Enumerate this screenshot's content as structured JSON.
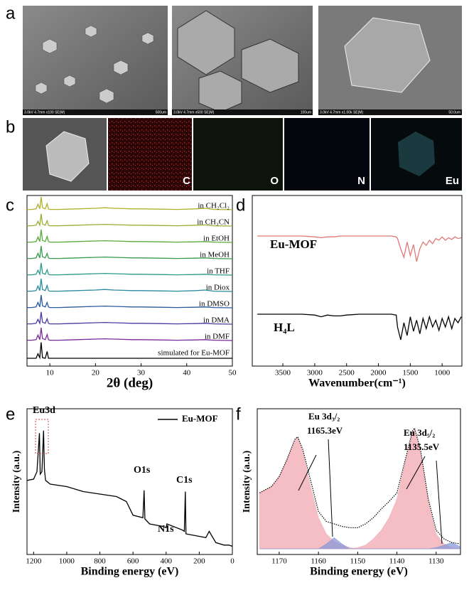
{
  "panel_labels": [
    "a",
    "b",
    "c",
    "d",
    "e",
    "f"
  ],
  "sem_images": [
    {
      "info": "3.0kV 4.7mm x100 SE(M)",
      "scale": "500um"
    },
    {
      "info": "3.0kV 4.7mm x500 SE(M)",
      "scale": "100um"
    },
    {
      "info": "3.0kV 4.7mm x1.00k SE(M)",
      "scale": "50.0um"
    }
  ],
  "eds_maps": [
    "C",
    "O",
    "N",
    "Eu"
  ],
  "chart_data": [
    {
      "type": "line",
      "xlabel": "2θ (deg)",
      "xlim": [
        5,
        50
      ],
      "xticks": [
        10,
        20,
        30,
        40,
        50
      ],
      "ylim": [
        0,
        3
      ],
      "x": [
        5,
        6,
        7,
        7.4,
        7.8,
        8.1,
        8.4,
        9,
        9.4,
        9.7,
        10,
        12,
        14,
        16,
        18,
        20,
        22,
        24,
        26,
        28,
        30,
        34,
        38,
        42,
        44,
        46,
        50
      ],
      "series": [
        {
          "name": "in CH₂Cl₂",
          "color": "#b0b02a",
          "values": [
            0.3,
            0.3,
            0.4,
            1.2,
            0.4,
            2.5,
            0.6,
            0.4,
            1.3,
            0.4,
            0.3,
            0.3,
            0.35,
            0.4,
            0.45,
            0.5,
            0.6,
            0.5,
            0.45,
            0.4,
            0.4,
            0.35,
            0.3,
            0.4,
            0.5,
            0.3,
            0.25
          ]
        },
        {
          "name": "in CH₃CN",
          "color": "#96b034",
          "values": [
            0.3,
            0.3,
            0.4,
            1.1,
            0.4,
            2.4,
            0.6,
            0.4,
            1.2,
            0.4,
            0.3,
            0.3,
            0.35,
            0.4,
            0.45,
            0.5,
            0.55,
            0.5,
            0.45,
            0.4,
            0.4,
            0.35,
            0.3,
            0.4,
            0.45,
            0.3,
            0.25
          ]
        },
        {
          "name": "in EtOH",
          "color": "#5aa83a",
          "values": [
            0.3,
            0.3,
            0.4,
            1.2,
            0.4,
            2.5,
            0.6,
            0.4,
            1.3,
            0.4,
            0.3,
            0.3,
            0.35,
            0.4,
            0.45,
            0.5,
            0.55,
            0.5,
            0.45,
            0.4,
            0.4,
            0.35,
            0.3,
            0.35,
            0.4,
            0.3,
            0.25
          ]
        },
        {
          "name": "in MeOH",
          "color": "#3a9a4a",
          "values": [
            0.3,
            0.3,
            0.4,
            1.2,
            0.4,
            2.5,
            0.6,
            0.4,
            1.2,
            0.4,
            0.3,
            0.3,
            0.35,
            0.4,
            0.45,
            0.5,
            0.55,
            0.5,
            0.45,
            0.4,
            0.4,
            0.35,
            0.3,
            0.35,
            0.4,
            0.3,
            0.25
          ]
        },
        {
          "name": "in THF",
          "color": "#2a9a8a",
          "values": [
            0.3,
            0.3,
            0.4,
            1.1,
            0.4,
            2.4,
            0.6,
            0.4,
            1.2,
            0.4,
            0.3,
            0.3,
            0.35,
            0.4,
            0.45,
            0.5,
            0.55,
            0.5,
            0.45,
            0.4,
            0.4,
            0.35,
            0.3,
            0.35,
            0.4,
            0.3,
            0.25
          ]
        },
        {
          "name": "in Diox",
          "color": "#2a8aa0",
          "values": [
            0.3,
            0.3,
            0.4,
            1.2,
            0.4,
            2.5,
            0.6,
            0.4,
            1.3,
            0.4,
            0.3,
            0.3,
            0.35,
            0.4,
            0.45,
            0.5,
            0.6,
            0.5,
            0.45,
            0.4,
            0.4,
            0.35,
            0.3,
            0.4,
            0.5,
            0.3,
            0.25
          ]
        },
        {
          "name": "in DMSO",
          "color": "#2a5aa0",
          "values": [
            0.3,
            0.3,
            0.4,
            1.2,
            0.4,
            2.5,
            0.6,
            0.4,
            1.2,
            0.4,
            0.3,
            0.3,
            0.35,
            0.4,
            0.45,
            0.5,
            0.55,
            0.5,
            0.45,
            0.4,
            0.4,
            0.35,
            0.3,
            0.35,
            0.4,
            0.3,
            0.25
          ]
        },
        {
          "name": "in DMA",
          "color": "#4a3aa0",
          "values": [
            0.3,
            0.3,
            0.4,
            1.1,
            0.4,
            2.4,
            0.6,
            0.4,
            1.2,
            0.4,
            0.3,
            0.3,
            0.35,
            0.4,
            0.45,
            0.5,
            0.55,
            0.5,
            0.45,
            0.4,
            0.4,
            0.35,
            0.3,
            0.35,
            0.4,
            0.3,
            0.25
          ]
        },
        {
          "name": "in DMF",
          "color": "#7a2a9a",
          "values": [
            0.3,
            0.3,
            0.4,
            1.2,
            0.4,
            2.5,
            0.6,
            0.4,
            1.3,
            0.4,
            0.3,
            0.3,
            0.35,
            0.4,
            0.45,
            0.5,
            0.55,
            0.5,
            0.45,
            0.4,
            0.4,
            0.35,
            0.3,
            0.35,
            0.4,
            0.3,
            0.25
          ]
        },
        {
          "name": "simulated for Eu-MOF",
          "color": "#000000",
          "values": [
            0,
            0,
            0,
            0.8,
            0.1,
            2.8,
            0.1,
            0,
            1.2,
            0,
            0,
            0,
            0,
            0,
            0,
            0,
            0,
            0,
            0,
            0,
            0,
            0,
            0,
            0,
            0,
            0,
            0
          ]
        }
      ]
    },
    {
      "type": "line",
      "xlabel": "Wavenumber(cm⁻¹)",
      "xlim": [
        3980,
        690
      ],
      "xticks": [
        3500,
        3000,
        2500,
        2000,
        1500,
        1000
      ],
      "ylim": [
        0,
        100
      ],
      "x": [
        3900,
        3500,
        3200,
        3000,
        2900,
        2800,
        2700,
        2600,
        2500,
        2300,
        2000,
        1800,
        1720,
        1700,
        1650,
        1600,
        1550,
        1500,
        1450,
        1400,
        1350,
        1300,
        1250,
        1200,
        1150,
        1100,
        1050,
        1000,
        950,
        900,
        850,
        800,
        750,
        700
      ],
      "series": [
        {
          "name": "Eu-MOF",
          "color": "#e07878",
          "values": [
            95,
            95,
            95,
            94,
            93,
            94,
            94,
            95,
            95,
            95,
            95,
            95,
            94,
            92,
            80,
            70,
            88,
            72,
            85,
            65,
            80,
            88,
            84,
            90,
            86,
            92,
            90,
            94,
            90,
            93,
            91,
            94,
            92,
            93
          ]
        },
        {
          "name": "H₄L",
          "color": "#000000",
          "values": [
            45,
            45,
            45,
            44,
            42,
            44,
            43,
            43,
            44,
            45,
            45,
            45,
            44,
            30,
            15,
            35,
            20,
            42,
            25,
            38,
            22,
            40,
            28,
            42,
            30,
            38,
            26,
            40,
            30,
            42,
            28,
            40,
            35,
            42
          ]
        }
      ]
    },
    {
      "type": "line",
      "xlabel": "Binding energy (eV)",
      "ylabel": "Intensity (a.u.)",
      "xlim": [
        1240,
        0
      ],
      "xticks": [
        1200,
        1000,
        800,
        600,
        400,
        200,
        0
      ],
      "ylim": [
        0,
        1
      ],
      "x": [
        1240,
        1200,
        1180,
        1165,
        1160,
        1150,
        1140,
        1135,
        1128,
        1100,
        1000,
        900,
        800,
        700,
        640,
        600,
        540,
        533,
        528,
        500,
        420,
        400,
        395,
        300,
        290,
        284,
        280,
        200,
        160,
        140,
        100,
        50,
        20,
        0
      ],
      "series": [
        {
          "name": "Eu-MOF",
          "color": "#000000",
          "values": [
            0.55,
            0.56,
            0.62,
            0.93,
            0.6,
            0.62,
            0.95,
            0.64,
            0.55,
            0.52,
            0.5,
            0.46,
            0.44,
            0.42,
            0.38,
            0.27,
            0.25,
            0.47,
            0.24,
            0.2,
            0.18,
            0.17,
            0.2,
            0.15,
            0.14,
            0.46,
            0.12,
            0.1,
            0.09,
            0.14,
            0.05,
            0.03,
            0.03,
            0.02
          ]
        }
      ],
      "annotations": [
        "Eu3d",
        "O1s",
        "N1s",
        "C1s"
      ]
    },
    {
      "type": "line",
      "xlabel": "Binding energy (eV)",
      "ylabel": "Intensity (a.u.)",
      "xlim": [
        1175.6,
        1123.8
      ],
      "xticks": [
        1170,
        1160,
        1150,
        1140,
        1130
      ],
      "ylim": [
        0,
        1
      ],
      "x": [
        1175,
        1172,
        1170,
        1168,
        1166,
        1165.3,
        1164,
        1162,
        1160,
        1158,
        1156,
        1154,
        1152,
        1150,
        1148,
        1146,
        1144,
        1142,
        1140,
        1138,
        1136,
        1135.5,
        1134,
        1132,
        1130,
        1128,
        1126,
        1124
      ],
      "series": [
        {
          "color": "#f0a8b0",
          "style": "area",
          "values": [
            0.45,
            0.5,
            0.58,
            0.72,
            0.87,
            0.9,
            0.78,
            0.5,
            0.25,
            0.12,
            0.06,
            0.03,
            0.01,
            0,
            0,
            0,
            0,
            0,
            0,
            0,
            0,
            0,
            0,
            0,
            0,
            0,
            0,
            0
          ]
        },
        {
          "color": "#f0a8b0",
          "style": "area",
          "values": [
            0,
            0,
            0,
            0,
            0,
            0,
            0,
            0,
            0,
            0,
            0,
            0,
            0,
            0.01,
            0.03,
            0.08,
            0.15,
            0.25,
            0.4,
            0.68,
            0.94,
            0.96,
            0.78,
            0.38,
            0.12,
            0.04,
            0.01,
            0
          ]
        },
        {
          "color": "#8898d8",
          "style": "area",
          "values": [
            0,
            0,
            0,
            0,
            0,
            0,
            0,
            0,
            0,
            0.04,
            0.09,
            0.04,
            0,
            0,
            0,
            0,
            0,
            0,
            0,
            0,
            0,
            0,
            0,
            0,
            0.01,
            0.03,
            0.05,
            0.02
          ]
        },
        {
          "color": "#000000",
          "style": "dotted",
          "values": [
            0.45,
            0.5,
            0.58,
            0.72,
            0.88,
            0.9,
            0.8,
            0.55,
            0.3,
            0.22,
            0.2,
            0.18,
            0.17,
            0.17,
            0.2,
            0.25,
            0.32,
            0.38,
            0.45,
            0.7,
            0.95,
            0.97,
            0.8,
            0.4,
            0.15,
            0.08,
            0.05,
            0.04
          ]
        }
      ],
      "annotations": [
        "Eu 3d₃/₂",
        "1165.3eV",
        "Eu 3d₅/₂",
        "1135.5eV"
      ]
    }
  ]
}
